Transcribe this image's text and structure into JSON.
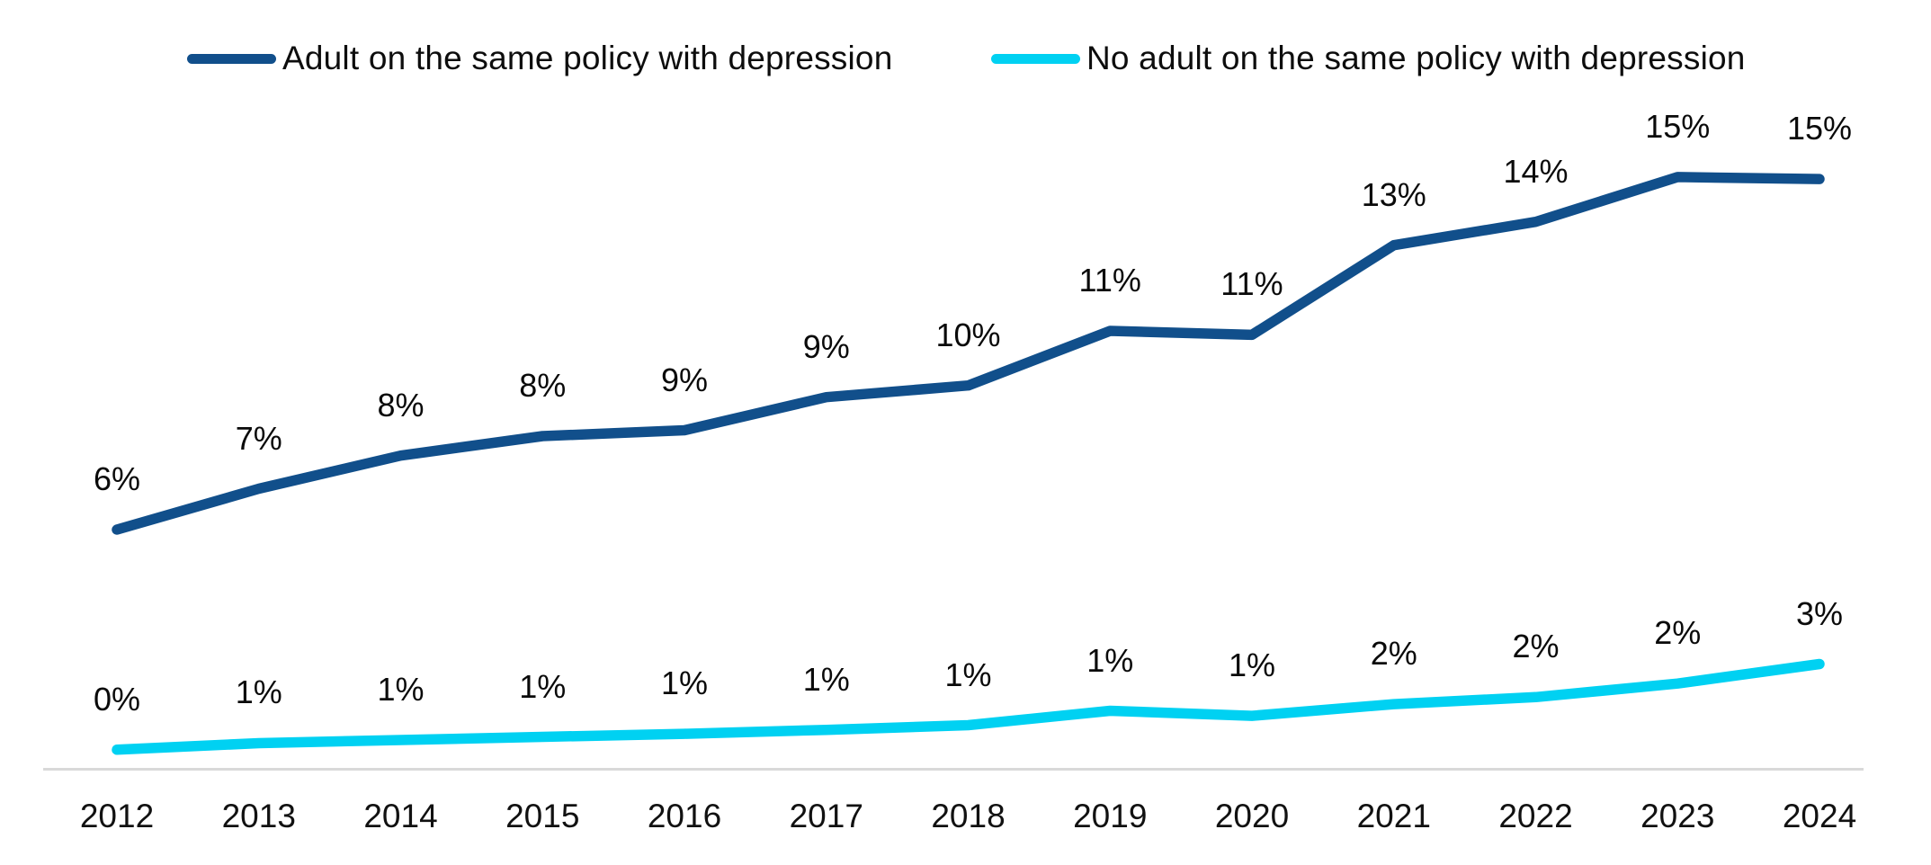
{
  "chart_data": {
    "type": "line",
    "categories": [
      "2012",
      "2013",
      "2014",
      "2015",
      "2016",
      "2017",
      "2018",
      "2019",
      "2020",
      "2021",
      "2022",
      "2023",
      "2024"
    ],
    "series": [
      {
        "name": "Adult on the same policy with depression",
        "color": "#114f8b",
        "values": [
          6,
          7,
          8,
          8,
          9,
          9,
          10,
          11,
          11,
          13,
          14,
          15,
          15
        ],
        "labels": [
          "6%",
          "7%",
          "8%",
          "8%",
          "9%",
          "9%",
          "10%",
          "11%",
          "11%",
          "13%",
          "14%",
          "15%",
          "15%"
        ],
        "plot_values": [
          6.0,
          7.05,
          7.9,
          8.4,
          8.55,
          9.4,
          9.7,
          11.1,
          11.0,
          13.3,
          13.9,
          15.05,
          15.0
        ]
      },
      {
        "name": "No adult on the same policy with depression",
        "color": "#00d1f2",
        "values": [
          0,
          1,
          1,
          1,
          1,
          1,
          1,
          1,
          1,
          2,
          2,
          2,
          3
        ],
        "labels": [
          "0%",
          "1%",
          "1%",
          "1%",
          "1%",
          "1%",
          "1%",
          "1%",
          "1%",
          "2%",
          "2%",
          "2%",
          "3%"
        ],
        "plot_values": [
          0.35,
          0.52,
          0.6,
          0.68,
          0.76,
          0.86,
          0.98,
          1.35,
          1.22,
          1.52,
          1.7,
          2.05,
          2.55
        ]
      }
    ],
    "title": "",
    "xlabel": "",
    "ylabel": "",
    "ylim": [
      0,
      17
    ],
    "grid": false,
    "legend_position": "top",
    "data_labels_shown": true,
    "axis_line_color": "#d9d9d9",
    "data_label_color": "#0a0a0a"
  }
}
